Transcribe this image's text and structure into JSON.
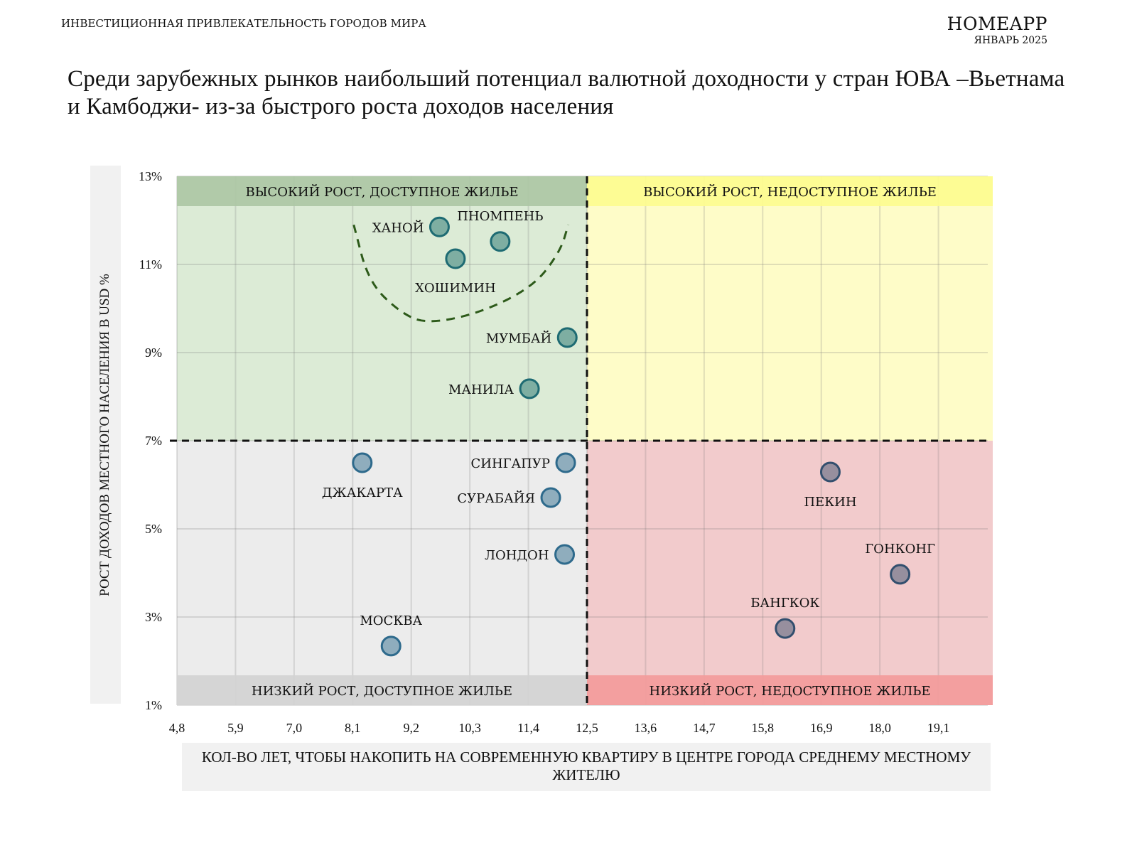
{
  "header": {
    "section_title": "ИНВЕСТИЦИОННАЯ ПРИВЛЕКАТЕЛЬНОСТЬ  ГОРОДОВ МИРА",
    "brand": "HOMEAPP",
    "date": "ЯНВАРЬ 2025"
  },
  "title": "Среди зарубежных рынков наибольший потенциал валютной доходности у стран ЮВА –Вьетнама и Камбоджи- из-за быстрого роста доходов населения",
  "colors": {
    "q_top_left_bg": "#dcebd6",
    "q_top_left_band": "#adc7a5",
    "q_top_right_bg": "#fefcc8",
    "q_top_right_band": "#fdfc8f",
    "q_bottom_left_bg": "#ececec",
    "q_bottom_left_band": "#d2d2d2",
    "q_bottom_right_bg": "#f2cbcc",
    "q_bottom_right_band": "#f39b9b",
    "point_green_fill": "#7eaea2",
    "point_green_stroke": "#1e6b73",
    "point_blue_fill": "#8fadbd",
    "point_blue_stroke": "#2e6a8c",
    "point_grey_fill": "#978f9e",
    "point_grey_stroke": "#334f6e",
    "curve": "#2d5a1a"
  },
  "chart_data": {
    "type": "scatter",
    "title": "Среди зарубежных рынков наибольший потенциал валютной доходности у стран ЮВА –Вьетнама и Камбоджи- из-за быстрого роста доходов населения",
    "xlabel": "КОЛ-ВО ЛЕТ, ЧТОБЫ НАКОПИТЬ НА СОВРЕМЕННУЮ КВАРТИРУ В ЦЕНТРЕ ГОРОДА СРЕДНЕМУ МЕСТНОМУ ЖИТЕЛЮ",
    "ylabel": "РОСТ ДОХОДОВ МЕСТНОГО НАСЕЛЕНИЯ В USD %",
    "xlim": [
      4.8,
      20.0
    ],
    "ylim": [
      1,
      13
    ],
    "x_ticks": [
      "4,8",
      "5,9",
      "7,0",
      "8,1",
      "9,2",
      "10,3",
      "11,4",
      "12,5",
      "13,6",
      "14,7",
      "15,8",
      "16,9",
      "18,0",
      "19,1"
    ],
    "x_tick_values": [
      4.8,
      5.9,
      7.0,
      8.1,
      9.2,
      10.3,
      11.4,
      12.5,
      13.6,
      14.7,
      15.8,
      16.9,
      18.0,
      19.1
    ],
    "y_ticks": [
      "13%",
      "11%",
      "9%",
      "7%",
      "5%",
      "3%",
      "1%"
    ],
    "y_tick_values": [
      13,
      11,
      9,
      7,
      5,
      3,
      1
    ],
    "grid": true,
    "divider_x": 12.5,
    "divider_y": 7,
    "quadrants": [
      {
        "id": "top_left",
        "label": "ВЫСОКИЙ РОСТ, ДОСТУПНОЕ ЖИЛЬЕ"
      },
      {
        "id": "top_right",
        "label": "ВЫСОКИЙ РОСТ, НЕДОСТУПНОЕ ЖИЛЬЕ"
      },
      {
        "id": "bottom_left",
        "label": "НИЗКИЙ РОСТ, ДОСТУПНОЕ ЖИЛЬЕ"
      },
      {
        "id": "bottom_right",
        "label": "НИЗКИЙ РОСТ, НЕДОСТУПНОЕ ЖИЛЬЕ"
      }
    ],
    "points": [
      {
        "name": "ХАНОЙ",
        "x": 9.73,
        "y": 11.85,
        "group": "green",
        "label_pos": "left"
      },
      {
        "name": "ПНОМПЕНЬ",
        "x": 10.87,
        "y": 11.52,
        "group": "green",
        "label_pos": "top"
      },
      {
        "name": "ХОШИМИН",
        "x": 10.03,
        "y": 11.13,
        "group": "green",
        "label_pos": "bottom"
      },
      {
        "name": "МУМБАЙ",
        "x": 12.13,
        "y": 9.34,
        "group": "green",
        "label_pos": "left"
      },
      {
        "name": "МАНИЛА",
        "x": 11.42,
        "y": 8.18,
        "group": "green",
        "label_pos": "left"
      },
      {
        "name": "ДЖАКАРТА",
        "x": 8.28,
        "y": 6.5,
        "group": "blue",
        "label_pos": "bottom"
      },
      {
        "name": "СИНГАПУР",
        "x": 12.1,
        "y": 6.5,
        "group": "blue",
        "label_pos": "left"
      },
      {
        "name": "СУРАБАЙЯ",
        "x": 11.82,
        "y": 5.71,
        "group": "blue",
        "label_pos": "left"
      },
      {
        "name": "ЛОНДОН",
        "x": 12.08,
        "y": 4.42,
        "group": "blue",
        "label_pos": "left"
      },
      {
        "name": "МОСКВА",
        "x": 8.82,
        "y": 2.34,
        "group": "blue",
        "label_pos": "top"
      },
      {
        "name": "ПЕКИН",
        "x": 17.07,
        "y": 6.29,
        "group": "grey",
        "label_pos": "bottom"
      },
      {
        "name": "ГОНКОНГ",
        "x": 18.38,
        "y": 3.97,
        "group": "grey",
        "label_pos": "top"
      },
      {
        "name": "БАНГКОК",
        "x": 16.22,
        "y": 2.74,
        "group": "grey",
        "label_pos": "top"
      }
    ],
    "annotation_curve": {
      "description": "dashed U-shaped outline around Vietnam & Cambodia cluster",
      "points": [
        [
          8.12,
          11.9
        ],
        [
          8.4,
          10.6
        ],
        [
          9.0,
          9.9
        ],
        [
          9.5,
          9.65
        ],
        [
          10.5,
          9.9
        ],
        [
          11.5,
          10.5
        ],
        [
          12.0,
          11.3
        ],
        [
          12.15,
          11.9
        ]
      ]
    }
  }
}
